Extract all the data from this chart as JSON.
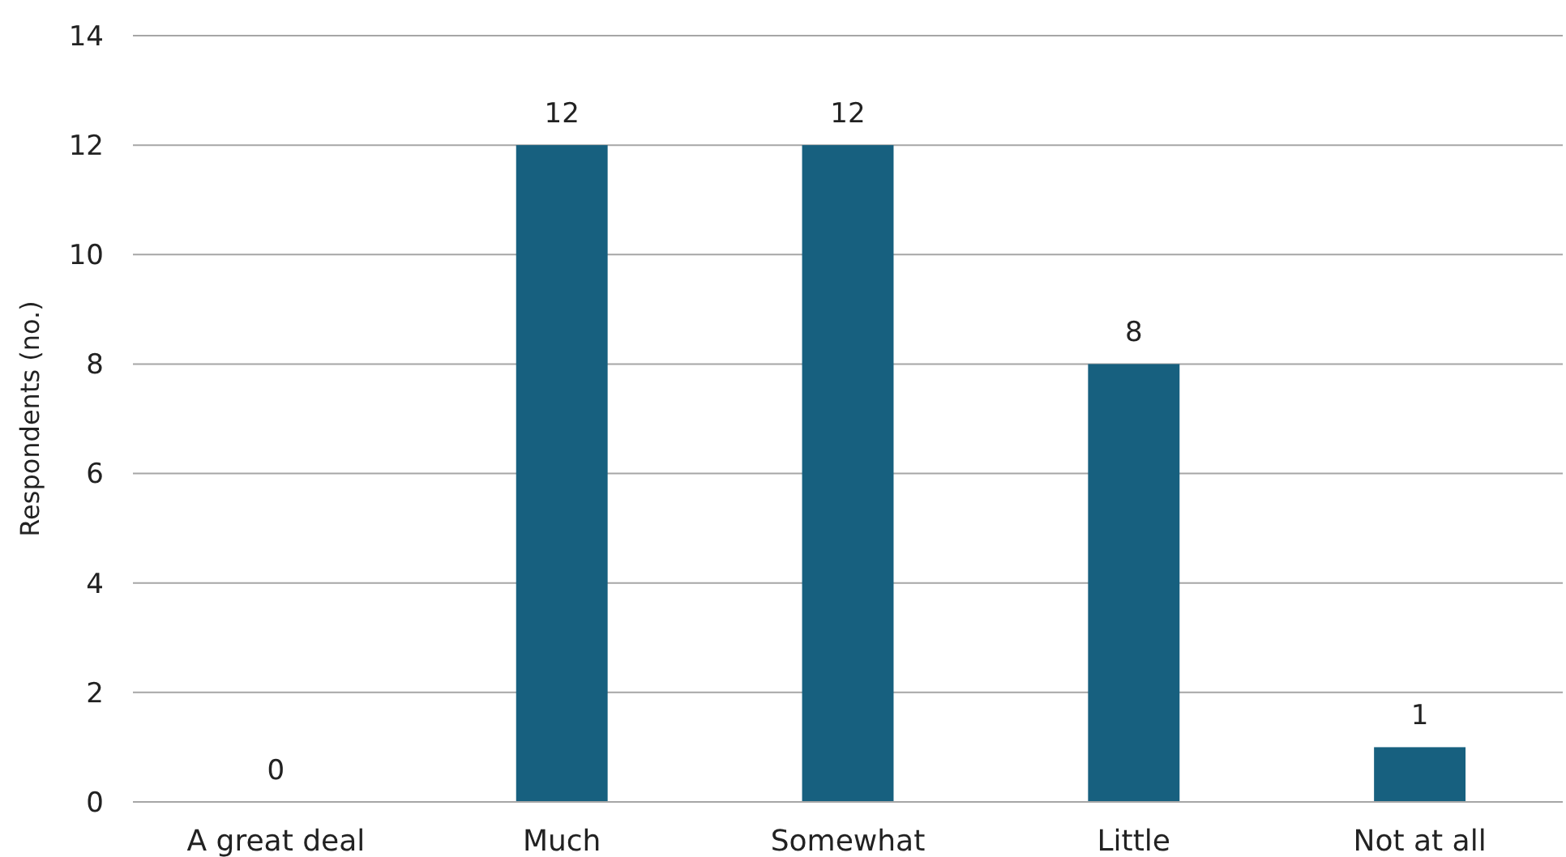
{
  "chart_data": {
    "type": "bar",
    "ylabel": "Respondents (no.)",
    "categories": [
      "A great deal",
      "Much",
      "Somewhat",
      "Little",
      "Not at all"
    ],
    "values": [
      0,
      12,
      12,
      8,
      1
    ],
    "color": "#17607f",
    "ylim": [
      0,
      14
    ],
    "yticks": [
      0,
      2,
      4,
      6,
      8,
      10,
      12,
      14
    ],
    "grid": "y",
    "data_labels": true
  }
}
